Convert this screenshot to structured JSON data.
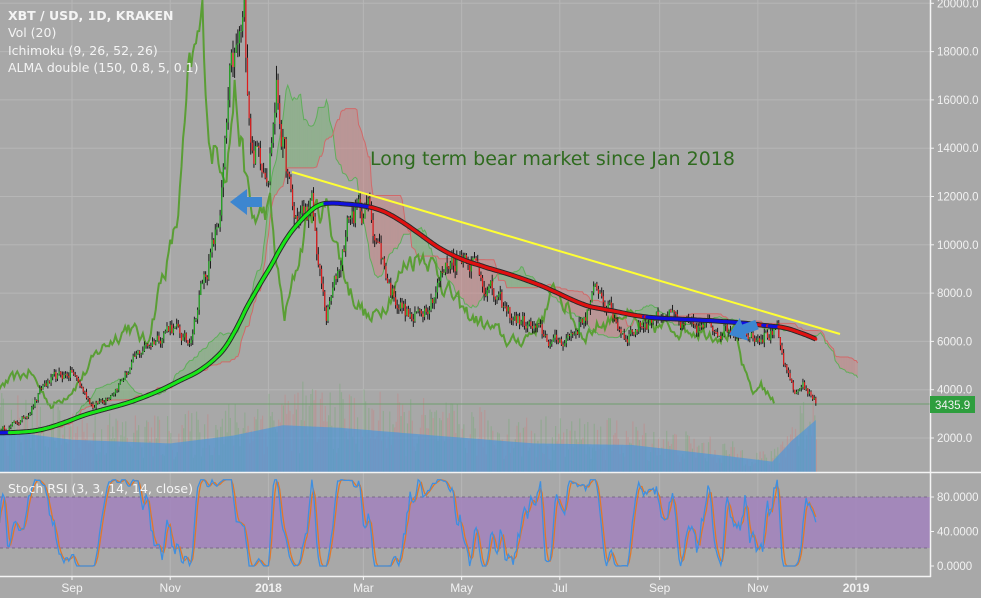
{
  "legend": {
    "symbol": "XBT / USD, 1D, KRAKEN",
    "vol": "Vol (20)",
    "ichimoku": "Ichimoku (9, 26, 52, 26)",
    "alma": "ALMA double (150, 0.8, 5, 0.1)",
    "stoch": "Stoch RSI (3, 3, 14, 14, close)"
  },
  "annotation": "Long term bear market since Jan 2018",
  "last_price_label": "3435.9",
  "colors": {
    "background": "#a8a8a8",
    "annotation": "#2f6b1f",
    "trendline": "#ffff33",
    "last_price": "#2e9e3e",
    "arrow": "#3d86d0",
    "stoch_k": "#3f8fe0",
    "stoch_d": "#e0782a",
    "stoch_band": "#a283bd",
    "volume_ma": "#5b9fd6",
    "lagging_span": "#5a9e35",
    "cloud_up": "#6fb86a",
    "cloud_down": "#d47a7a"
  },
  "chart_data": [
    {
      "type": "candlestick",
      "title": "XBT / USD, 1D, KRAKEN",
      "x_tick_labels": [
        "Sep",
        "Nov",
        "2018",
        "Mar",
        "May",
        "Jul",
        "Sep",
        "Nov",
        "2019"
      ],
      "y_tick_labels": [
        "20000.0",
        "18000.0",
        "16000.0",
        "14000.0",
        "12000.0",
        "10000.0",
        "8000.0",
        "6000.0",
        "4000.0",
        "2000.0"
      ],
      "ylim": [
        0,
        20000
      ],
      "grid": true,
      "close_keypoints": [
        [
          "2017-07-18",
          2300
        ],
        [
          "2017-08-01",
          2750
        ],
        [
          "2017-08-15",
          4200
        ],
        [
          "2017-09-01",
          4750
        ],
        [
          "2017-09-15",
          3300
        ],
        [
          "2017-10-01",
          4350
        ],
        [
          "2017-10-15",
          5700
        ],
        [
          "2017-11-01",
          6700
        ],
        [
          "2017-11-12",
          5900
        ],
        [
          "2017-11-20",
          8200
        ],
        [
          "2017-12-01",
          10800
        ],
        [
          "2017-12-08",
          16500
        ],
        [
          "2017-12-17",
          19200
        ],
        [
          "2017-12-22",
          14000
        ],
        [
          "2018-01-01",
          13500
        ],
        [
          "2018-01-06",
          16500
        ],
        [
          "2018-01-17",
          11000
        ],
        [
          "2018-01-28",
          11500
        ],
        [
          "2018-02-06",
          7000
        ],
        [
          "2018-02-20",
          11200
        ],
        [
          "2018-03-05",
          11500
        ],
        [
          "2018-03-18",
          8200
        ],
        [
          "2018-04-01",
          6800
        ],
        [
          "2018-04-24",
          9400
        ],
        [
          "2018-05-05",
          9700
        ],
        [
          "2018-05-28",
          7200
        ],
        [
          "2018-06-10",
          6700
        ],
        [
          "2018-06-28",
          5900
        ],
        [
          "2018-07-10",
          6400
        ],
        [
          "2018-07-25",
          8200
        ],
        [
          "2018-08-10",
          6300
        ],
        [
          "2018-09-05",
          7300
        ],
        [
          "2018-09-15",
          6500
        ],
        [
          "2018-10-10",
          6600
        ],
        [
          "2018-11-13",
          6300
        ],
        [
          "2018-11-15",
          5600
        ],
        [
          "2018-11-20",
          4400
        ],
        [
          "2018-11-25",
          3800
        ],
        [
          "2018-11-29",
          4300
        ],
        [
          "2018-12-07",
          3435.9
        ]
      ],
      "last_price": 3435.9
    },
    {
      "type": "area",
      "name": "Vol (20)",
      "volume_ma_relative": [
        [
          "2017-07-18",
          0.8
        ],
        [
          "2017-09-01",
          0.62
        ],
        [
          "2017-11-01",
          0.55
        ],
        [
          "2017-12-10",
          0.7
        ],
        [
          "2018-01-10",
          0.9
        ],
        [
          "2018-02-15",
          0.85
        ],
        [
          "2018-04-15",
          0.7
        ],
        [
          "2018-06-15",
          0.55
        ],
        [
          "2018-08-15",
          0.52
        ],
        [
          "2018-10-15",
          0.3
        ],
        [
          "2018-11-10",
          0.2
        ],
        [
          "2018-11-22",
          0.6
        ],
        [
          "2018-12-07",
          1.0
        ]
      ]
    },
    {
      "type": "line",
      "name": "Stoch RSI (3, 3, 14, 14, close)",
      "y_tick_labels": [
        "80.0000",
        "40.0000",
        "0.0000"
      ],
      "ylim": [
        0,
        100
      ],
      "band": [
        20,
        80
      ]
    }
  ]
}
